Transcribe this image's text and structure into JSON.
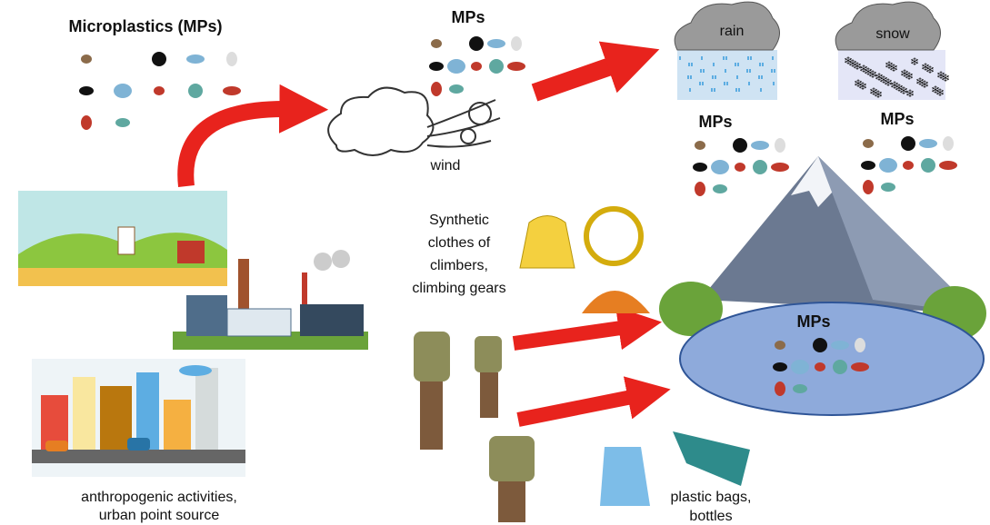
{
  "sources": {
    "title": "Microplastics (MPs)",
    "caption": [
      "anthropogenic activities,",
      "urban point source"
    ]
  },
  "atmosphere": {
    "label": "MPs",
    "wind": "wind",
    "rain": "rain",
    "snow": "snow",
    "rain_mps": "MPs",
    "snow_mps": "MPs"
  },
  "climbers": {
    "caption": [
      "Synthetic",
      "clothes of",
      "climbers,",
      "climbing gears"
    ]
  },
  "lake": {
    "label": "MPs"
  },
  "litter": {
    "caption": [
      "plastic bags,",
      "bottles"
    ]
  }
}
